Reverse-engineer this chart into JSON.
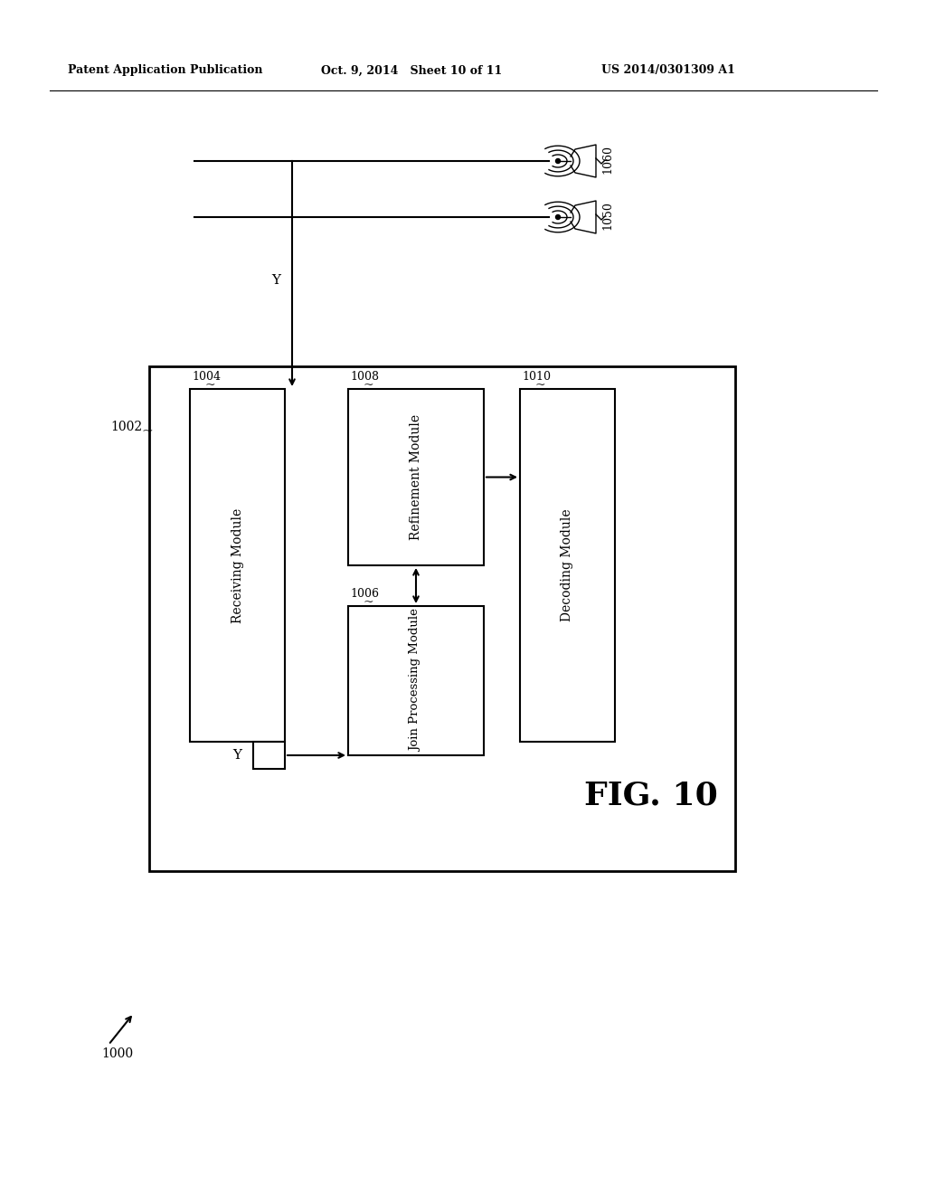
{
  "header_left": "Patent Application Publication",
  "header_mid": "Oct. 9, 2014   Sheet 10 of 11",
  "header_right": "US 2014/0301309 A1",
  "fig_label": "FIG. 10",
  "system_label": "1000",
  "outer_box_label": "1002",
  "receiving_module_label": "1004",
  "receiving_module_text": "Receiving Module",
  "join_module_label": "1006",
  "join_module_text": "Join Processing Module",
  "refinement_module_label": "1008",
  "refinement_module_text": "Refinement Module",
  "decoding_module_label": "1010",
  "decoding_module_text": "Decoding Module",
  "antenna1_label": "1060",
  "antenna2_label": "1050",
  "signal_y": "Y",
  "background_color": "#ffffff",
  "box_color": "#000000",
  "text_color": "#000000"
}
